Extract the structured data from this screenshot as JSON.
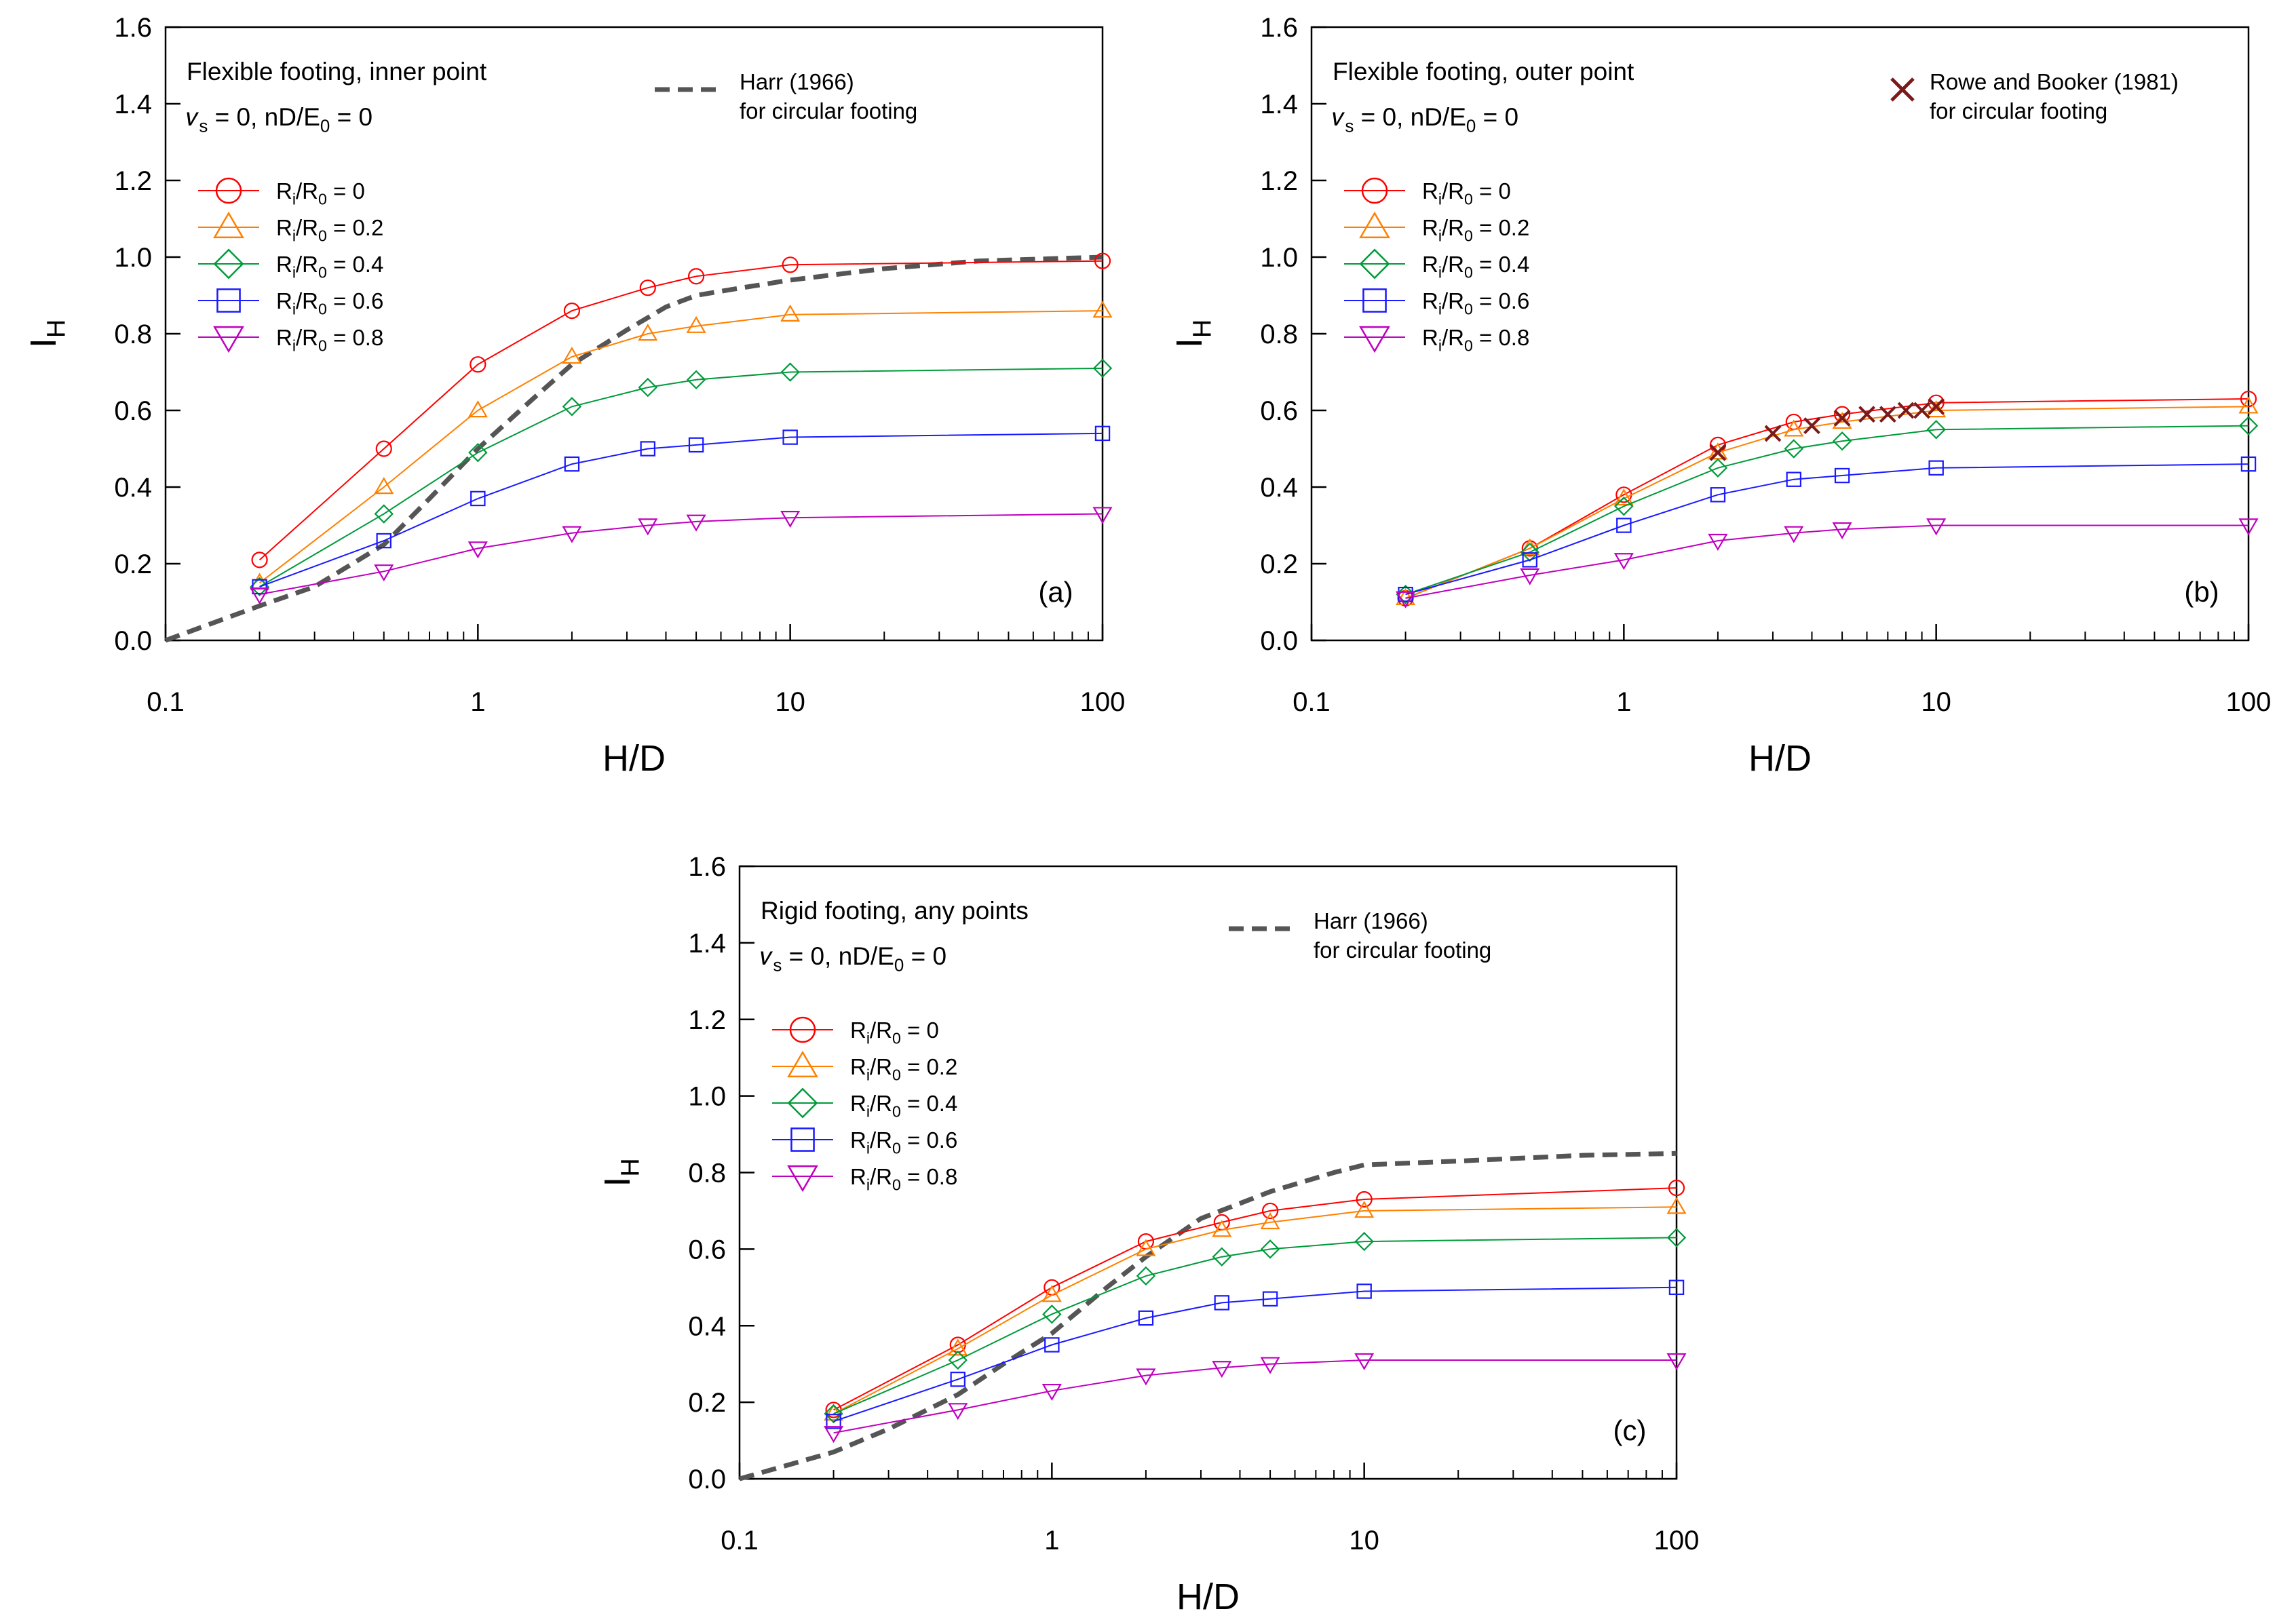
{
  "chart_data": [
    {
      "type": "line",
      "panel": "a",
      "panel_label": "(a)",
      "title": "Flexible footing, inner point",
      "condition": "𝜈s = 0, nD/E0 = 0",
      "xlabel": "H/D",
      "ylabel": "IH",
      "xscale": "log",
      "xlim": [
        0.1,
        100
      ],
      "ylim": [
        0,
        1.6
      ],
      "xticks": [
        "0.1",
        "1",
        "10",
        "100"
      ],
      "yticks": [
        "0.0",
        "0.2",
        "0.4",
        "0.6",
        "0.8",
        "1.0",
        "1.2",
        "1.4",
        "1.6"
      ],
      "reference": {
        "name": "Harr (1966)",
        "name2": "for circular footing",
        "style": "dashed",
        "x": [
          0.1,
          0.2,
          0.3,
          0.5,
          0.7,
          1,
          1.5,
          2,
          3,
          4,
          5,
          7,
          10,
          20,
          40,
          100
        ],
        "y": [
          0.0,
          0.09,
          0.14,
          0.25,
          0.37,
          0.5,
          0.63,
          0.72,
          0.81,
          0.87,
          0.9,
          0.92,
          0.94,
          0.97,
          0.99,
          1.0
        ]
      },
      "series": [
        {
          "name": "Ri/R0 = 0",
          "marker": "circle",
          "color": "#ff0000",
          "x": [
            0.2,
            0.5,
            1,
            2,
            3.5,
            5,
            10,
            100
          ],
          "y": [
            0.21,
            0.5,
            0.72,
            0.86,
            0.92,
            0.95,
            0.98,
            0.99
          ]
        },
        {
          "name": "Ri/R0 = 0.2",
          "marker": "triangle-up",
          "color": "#ff8000",
          "x": [
            0.2,
            0.5,
            1,
            2,
            3.5,
            5,
            10,
            100
          ],
          "y": [
            0.15,
            0.4,
            0.6,
            0.74,
            0.8,
            0.82,
            0.85,
            0.86
          ]
        },
        {
          "name": "Ri/R0 = 0.4",
          "marker": "diamond",
          "color": "#009a3a",
          "x": [
            0.2,
            0.5,
            1,
            2,
            3.5,
            5,
            10,
            100
          ],
          "y": [
            0.14,
            0.33,
            0.49,
            0.61,
            0.66,
            0.68,
            0.7,
            0.71
          ]
        },
        {
          "name": "Ri/R0 = 0.6",
          "marker": "square",
          "color": "#1a1aff",
          "x": [
            0.2,
            0.5,
            1,
            2,
            3.5,
            5,
            10,
            100
          ],
          "y": [
            0.14,
            0.26,
            0.37,
            0.46,
            0.5,
            0.51,
            0.53,
            0.54
          ]
        },
        {
          "name": "Ri/R0 = 0.8",
          "marker": "triangle-down",
          "color": "#bf00bf",
          "x": [
            0.2,
            0.5,
            1,
            2,
            3.5,
            5,
            10,
            100
          ],
          "y": [
            0.12,
            0.18,
            0.24,
            0.28,
            0.3,
            0.31,
            0.32,
            0.33
          ]
        }
      ]
    },
    {
      "type": "line",
      "panel": "b",
      "panel_label": "(b)",
      "title": "Flexible footing, outer point",
      "condition": "𝜈s = 0, nD/E0 = 0",
      "xlabel": "H/D",
      "ylabel": "IH",
      "xscale": "log",
      "xlim": [
        0.1,
        100
      ],
      "ylim": [
        0,
        1.6
      ],
      "xticks": [
        "0.1",
        "1",
        "10",
        "100"
      ],
      "yticks": [
        "0.0",
        "0.2",
        "0.4",
        "0.6",
        "0.8",
        "1.0",
        "1.2",
        "1.4",
        "1.6"
      ],
      "reference": {
        "name": "Rowe and Booker (1981)",
        "name2": "for circular footing",
        "style": "x-markers",
        "color": "#7a1a1a",
        "x": [
          2,
          3,
          4,
          5,
          6,
          7,
          8,
          9,
          10
        ],
        "y": [
          0.49,
          0.54,
          0.56,
          0.58,
          0.59,
          0.59,
          0.6,
          0.6,
          0.61
        ]
      },
      "series": [
        {
          "name": "Ri/R0 = 0",
          "marker": "circle",
          "color": "#ff0000",
          "x": [
            0.2,
            0.5,
            1,
            2,
            3.5,
            5,
            10,
            100
          ],
          "y": [
            0.11,
            0.24,
            0.38,
            0.51,
            0.57,
            0.59,
            0.62,
            0.63
          ]
        },
        {
          "name": "Ri/R0 = 0.2",
          "marker": "triangle-up",
          "color": "#ff8000",
          "x": [
            0.2,
            0.5,
            1,
            2,
            3.5,
            5,
            10,
            100
          ],
          "y": [
            0.11,
            0.24,
            0.37,
            0.49,
            0.55,
            0.57,
            0.6,
            0.61
          ]
        },
        {
          "name": "Ri/R0 = 0.4",
          "marker": "diamond",
          "color": "#009a3a",
          "x": [
            0.2,
            0.5,
            1,
            2,
            3.5,
            5,
            10,
            100
          ],
          "y": [
            0.12,
            0.23,
            0.35,
            0.45,
            0.5,
            0.52,
            0.55,
            0.56
          ]
        },
        {
          "name": "Ri/R0 = 0.6",
          "marker": "square",
          "color": "#1a1aff",
          "x": [
            0.2,
            0.5,
            1,
            2,
            3.5,
            5,
            10,
            100
          ],
          "y": [
            0.12,
            0.21,
            0.3,
            0.38,
            0.42,
            0.43,
            0.45,
            0.46
          ]
        },
        {
          "name": "Ri/R0 = 0.8",
          "marker": "triangle-down",
          "color": "#bf00bf",
          "x": [
            0.2,
            0.5,
            1,
            2,
            3.5,
            5,
            10,
            100
          ],
          "y": [
            0.11,
            0.17,
            0.21,
            0.26,
            0.28,
            0.29,
            0.3,
            0.3
          ]
        }
      ]
    },
    {
      "type": "line",
      "panel": "c",
      "panel_label": "(c)",
      "title": "Rigid footing, any points",
      "condition": "𝜈s = 0, nD/E0 = 0",
      "xlabel": "H/D",
      "ylabel": "IH",
      "xscale": "log",
      "xlim": [
        0.1,
        100
      ],
      "ylim": [
        0,
        1.6
      ],
      "xticks": [
        "0.1",
        "1",
        "10",
        "100"
      ],
      "yticks": [
        "0.0",
        "0.2",
        "0.4",
        "0.6",
        "0.8",
        "1.0",
        "1.2",
        "1.4",
        "1.6"
      ],
      "reference": {
        "name": "Harr (1966)",
        "name2": "for circular footing",
        "style": "dashed",
        "x": [
          0.1,
          0.2,
          0.3,
          0.5,
          0.7,
          1,
          1.5,
          2,
          3,
          5,
          8,
          10,
          20,
          50,
          100
        ],
        "y": [
          0.0,
          0.07,
          0.13,
          0.22,
          0.3,
          0.38,
          0.5,
          0.58,
          0.68,
          0.75,
          0.8,
          0.82,
          0.83,
          0.845,
          0.85
        ]
      },
      "series": [
        {
          "name": "Ri/R0 = 0",
          "marker": "circle",
          "color": "#ff0000",
          "x": [
            0.2,
            0.5,
            1,
            2,
            3.5,
            5,
            10,
            100
          ],
          "y": [
            0.18,
            0.35,
            0.5,
            0.62,
            0.67,
            0.7,
            0.73,
            0.76
          ]
        },
        {
          "name": "Ri/R0 = 0.2",
          "marker": "triangle-up",
          "color": "#ff8000",
          "x": [
            0.2,
            0.5,
            1,
            2,
            3.5,
            5,
            10,
            100
          ],
          "y": [
            0.17,
            0.34,
            0.48,
            0.6,
            0.65,
            0.67,
            0.7,
            0.71
          ]
        },
        {
          "name": "Ri/R0 = 0.4",
          "marker": "diamond",
          "color": "#009a3a",
          "x": [
            0.2,
            0.5,
            1,
            2,
            3.5,
            5,
            10,
            100
          ],
          "y": [
            0.17,
            0.31,
            0.43,
            0.53,
            0.58,
            0.6,
            0.62,
            0.63
          ]
        },
        {
          "name": "Ri/R0 = 0.6",
          "marker": "square",
          "color": "#1a1aff",
          "x": [
            0.2,
            0.5,
            1,
            2,
            3.5,
            5,
            10,
            100
          ],
          "y": [
            0.15,
            0.26,
            0.35,
            0.42,
            0.46,
            0.47,
            0.49,
            0.5
          ]
        },
        {
          "name": "Ri/R0 = 0.8",
          "marker": "triangle-down",
          "color": "#bf00bf",
          "x": [
            0.2,
            0.5,
            1,
            2,
            3.5,
            5,
            10,
            100
          ],
          "y": [
            0.12,
            0.18,
            0.23,
            0.27,
            0.29,
            0.3,
            0.31,
            0.31
          ]
        }
      ]
    }
  ]
}
